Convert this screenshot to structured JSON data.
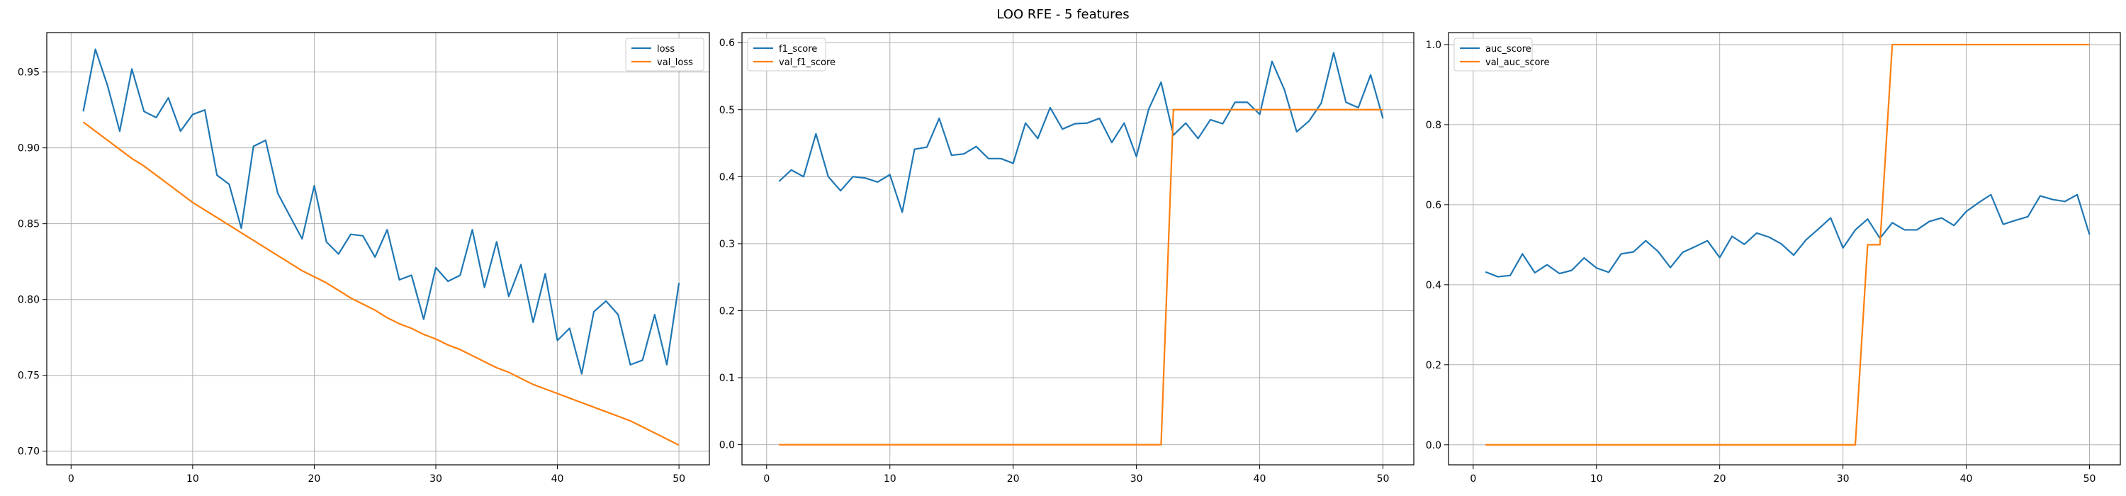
{
  "figure": {
    "title": "LOO RFE - 5 features"
  },
  "colors": {
    "blue": "#1f77b4",
    "orange": "#ff7f0e",
    "grid": "#b0b0b0"
  },
  "chart_data": [
    {
      "type": "line",
      "title": "",
      "xlabel": "",
      "ylabel": "",
      "xlim": [
        -2,
        52.5
      ],
      "ylim": [
        0.691,
        0.976
      ],
      "xticks": [
        0,
        10,
        20,
        30,
        40,
        50
      ],
      "yticks": [
        0.7,
        0.75,
        0.8,
        0.85,
        0.9,
        0.95
      ],
      "ytick_decimals": 2,
      "grid": true,
      "legend_position": "top-right",
      "x": [
        1,
        2,
        3,
        4,
        5,
        6,
        7,
        8,
        9,
        10,
        11,
        12,
        13,
        14,
        15,
        16,
        17,
        18,
        19,
        20,
        21,
        22,
        23,
        24,
        25,
        26,
        27,
        28,
        29,
        30,
        31,
        32,
        33,
        34,
        35,
        36,
        37,
        38,
        39,
        40,
        41,
        42,
        43,
        44,
        45,
        46,
        47,
        48,
        49,
        50
      ],
      "series": [
        {
          "name": "loss",
          "color": "#1f77b4",
          "values": [
            0.924,
            0.965,
            0.941,
            0.911,
            0.952,
            0.924,
            0.92,
            0.933,
            0.911,
            0.922,
            0.925,
            0.882,
            0.876,
            0.847,
            0.901,
            0.905,
            0.87,
            0.855,
            0.84,
            0.875,
            0.838,
            0.83,
            0.843,
            0.842,
            0.828,
            0.846,
            0.813,
            0.816,
            0.787,
            0.821,
            0.812,
            0.816,
            0.846,
            0.808,
            0.838,
            0.802,
            0.823,
            0.785,
            0.817,
            0.773,
            0.781,
            0.751,
            0.792,
            0.799,
            0.79,
            0.757,
            0.76,
            0.79,
            0.757,
            0.811
          ]
        },
        {
          "name": "val_loss",
          "color": "#ff7f0e",
          "values": [
            0.917,
            0.911,
            0.905,
            0.899,
            0.893,
            0.888,
            0.882,
            0.876,
            0.87,
            0.864,
            0.859,
            0.854,
            0.849,
            0.844,
            0.839,
            0.834,
            0.829,
            0.824,
            0.819,
            0.815,
            0.811,
            0.806,
            0.801,
            0.797,
            0.793,
            0.788,
            0.784,
            0.781,
            0.777,
            0.774,
            0.77,
            0.767,
            0.763,
            0.759,
            0.755,
            0.752,
            0.748,
            0.744,
            0.741,
            0.738,
            0.735,
            0.732,
            0.729,
            0.726,
            0.723,
            0.72,
            0.716,
            0.712,
            0.708,
            0.704
          ]
        }
      ]
    },
    {
      "type": "line",
      "title": "",
      "xlabel": "",
      "ylabel": "",
      "xlim": [
        -2,
        52.5
      ],
      "ylim": [
        -0.03,
        0.615
      ],
      "xticks": [
        0,
        10,
        20,
        30,
        40,
        50
      ],
      "yticks": [
        0.0,
        0.1,
        0.2,
        0.3,
        0.4,
        0.5,
        0.6
      ],
      "ytick_decimals": 1,
      "grid": true,
      "legend_position": "top-left",
      "x": [
        1,
        2,
        3,
        4,
        5,
        6,
        7,
        8,
        9,
        10,
        11,
        12,
        13,
        14,
        15,
        16,
        17,
        18,
        19,
        20,
        21,
        22,
        23,
        24,
        25,
        26,
        27,
        28,
        29,
        30,
        31,
        32,
        33,
        34,
        35,
        36,
        37,
        38,
        39,
        40,
        41,
        42,
        43,
        44,
        45,
        46,
        47,
        48,
        49,
        50
      ],
      "series": [
        {
          "name": "f1_score",
          "color": "#1f77b4",
          "values": [
            0.393,
            0.41,
            0.4,
            0.464,
            0.4,
            0.379,
            0.4,
            0.398,
            0.392,
            0.403,
            0.347,
            0.441,
            0.444,
            0.487,
            0.432,
            0.434,
            0.445,
            0.427,
            0.427,
            0.42,
            0.48,
            0.457,
            0.503,
            0.471,
            0.479,
            0.48,
            0.487,
            0.451,
            0.48,
            0.43,
            0.501,
            0.541,
            0.462,
            0.48,
            0.457,
            0.485,
            0.479,
            0.511,
            0.511,
            0.493,
            0.572,
            0.53,
            0.467,
            0.483,
            0.51,
            0.585,
            0.511,
            0.503,
            0.552,
            0.487
          ]
        },
        {
          "name": "val_f1_score",
          "color": "#ff7f0e",
          "values": [
            0,
            0,
            0,
            0,
            0,
            0,
            0,
            0,
            0,
            0,
            0,
            0,
            0,
            0,
            0,
            0,
            0,
            0,
            0,
            0,
            0,
            0,
            0,
            0,
            0,
            0,
            0,
            0,
            0,
            0,
            0,
            0,
            0.5,
            0.5,
            0.5,
            0.5,
            0.5,
            0.5,
            0.5,
            0.5,
            0.5,
            0.5,
            0.5,
            0.5,
            0.5,
            0.5,
            0.5,
            0.5,
            0.5,
            0.5
          ]
        }
      ]
    },
    {
      "type": "line",
      "title": "",
      "xlabel": "",
      "ylabel": "",
      "xlim": [
        -2,
        52.5
      ],
      "ylim": [
        -0.05,
        1.03
      ],
      "xticks": [
        0,
        10,
        20,
        30,
        40,
        50
      ],
      "yticks": [
        0.0,
        0.2,
        0.4,
        0.6,
        0.8,
        1.0
      ],
      "ytick_decimals": 1,
      "grid": true,
      "legend_position": "top-left",
      "x": [
        1,
        2,
        3,
        4,
        5,
        6,
        7,
        8,
        9,
        10,
        11,
        12,
        13,
        14,
        15,
        16,
        17,
        18,
        19,
        20,
        21,
        22,
        23,
        24,
        25,
        26,
        27,
        28,
        29,
        30,
        31,
        32,
        33,
        34,
        35,
        36,
        37,
        38,
        39,
        40,
        41,
        42,
        43,
        44,
        45,
        46,
        47,
        48,
        49,
        50
      ],
      "series": [
        {
          "name": "auc_score",
          "color": "#1f77b4",
          "values": [
            0.432,
            0.42,
            0.423,
            0.477,
            0.43,
            0.45,
            0.428,
            0.436,
            0.467,
            0.442,
            0.431,
            0.477,
            0.482,
            0.51,
            0.483,
            0.443,
            0.481,
            0.495,
            0.51,
            0.468,
            0.521,
            0.501,
            0.529,
            0.519,
            0.502,
            0.474,
            0.512,
            0.539,
            0.567,
            0.492,
            0.537,
            0.564,
            0.516,
            0.555,
            0.537,
            0.537,
            0.558,
            0.567,
            0.548,
            0.583,
            0.605,
            0.625,
            0.551,
            0.561,
            0.57,
            0.622,
            0.613,
            0.608,
            0.625,
            0.525
          ]
        },
        {
          "name": "val_auc_score",
          "color": "#ff7f0e",
          "values": [
            0,
            0,
            0,
            0,
            0,
            0,
            0,
            0,
            0,
            0,
            0,
            0,
            0,
            0,
            0,
            0,
            0,
            0,
            0,
            0,
            0,
            0,
            0,
            0,
            0,
            0,
            0,
            0,
            0,
            0,
            0,
            0.5,
            0.5,
            1,
            1,
            1,
            1,
            1,
            1,
            1,
            1,
            1,
            1,
            1,
            1,
            1,
            1,
            1,
            1,
            1
          ]
        }
      ]
    }
  ]
}
